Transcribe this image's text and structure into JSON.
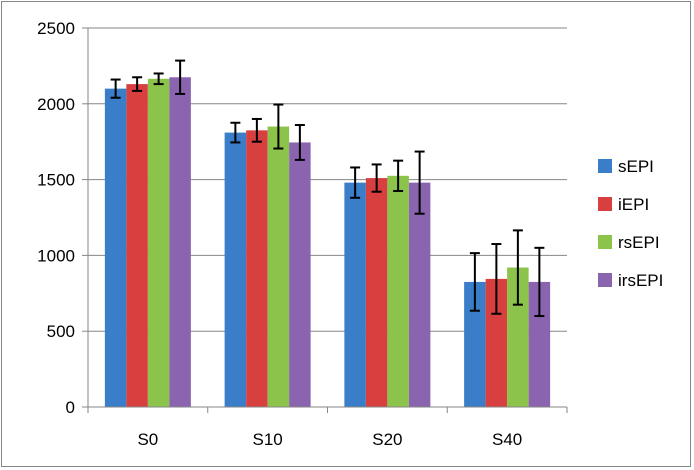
{
  "chart_data": {
    "type": "bar",
    "categories": [
      "S0",
      "S10",
      "S20",
      "S40"
    ],
    "series": [
      {
        "name": "sEPI",
        "color": "#3A7DC8",
        "values": [
          2100,
          1810,
          1480,
          825
        ],
        "errors": [
          60,
          65,
          100,
          190
        ]
      },
      {
        "name": "iEPI",
        "color": "#D84040",
        "values": [
          2130,
          1825,
          1510,
          845
        ],
        "errors": [
          45,
          75,
          90,
          230
        ]
      },
      {
        "name": "rsEPI",
        "color": "#8CC44B",
        "values": [
          2165,
          1850,
          1525,
          920
        ],
        "errors": [
          35,
          145,
          100,
          245
        ]
      },
      {
        "name": "irsEPI",
        "color": "#8B64B0",
        "values": [
          2175,
          1745,
          1480,
          825
        ],
        "errors": [
          110,
          115,
          205,
          225
        ]
      }
    ],
    "yticks": [
      "0",
      "500",
      "1000",
      "1500",
      "2000",
      "2500"
    ],
    "ylim": [
      0,
      2500
    ],
    "grid": true,
    "legend_position": "right",
    "title": "",
    "xlabel": "",
    "ylabel": ""
  }
}
